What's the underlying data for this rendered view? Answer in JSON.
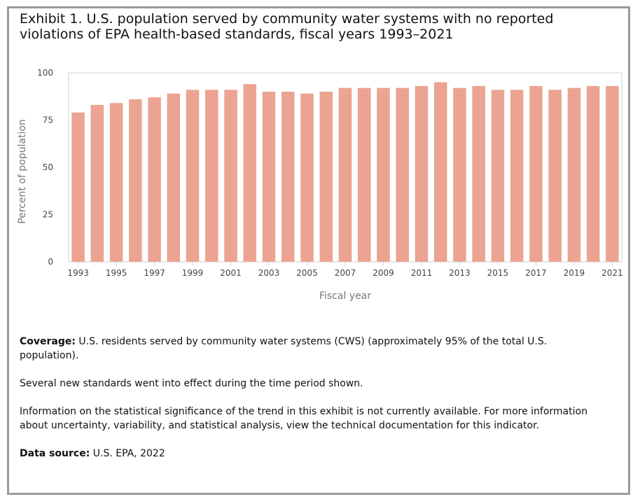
{
  "title": "Exhibit 1. U.S. population served by community water systems with no reported violations of EPA health-based standards, fiscal years 1993–2021",
  "chart_data": {
    "type": "bar",
    "xlabel": "Fiscal year",
    "ylabel": "Percent of population",
    "ylim": [
      0,
      100
    ],
    "yticks": [
      0,
      25,
      50,
      75,
      100
    ],
    "grid": false,
    "bar_color": "#eca392",
    "categories": [
      "1993",
      "1994",
      "1995",
      "1996",
      "1997",
      "1998",
      "1999",
      "2000",
      "2001",
      "2002",
      "2003",
      "2004",
      "2005",
      "2006",
      "2007",
      "2008",
      "2009",
      "2010",
      "2011",
      "2012",
      "2013",
      "2014",
      "2015",
      "2016",
      "2017",
      "2018",
      "2019",
      "2020",
      "2021"
    ],
    "tick_labels": [
      "1993",
      "1995",
      "1997",
      "1999",
      "2001",
      "2003",
      "2005",
      "2007",
      "2009",
      "2011",
      "2013",
      "2015",
      "2017",
      "2019",
      "2021"
    ],
    "values": [
      79,
      83,
      84,
      86,
      87,
      89,
      91,
      91,
      91,
      94,
      90,
      90,
      89,
      90,
      92,
      92,
      92,
      92,
      93,
      95,
      92,
      93,
      91,
      91,
      93,
      91,
      92,
      93,
      93
    ]
  },
  "notes": {
    "coverage_label": "Coverage:",
    "coverage_text": " U.S. residents served by community water systems (CWS) (approximately 95% of the total U.S. population).",
    "standards_text": "Several new standards went into effect during the time period shown.",
    "significance_text": "Information on the statistical significance of the trend in this exhibit is not currently available. For more information about uncertainty, variability, and statistical analysis, view the technical documentation for this indicator.",
    "source_label": "Data source:",
    "source_text": " U.S. EPA, 2022"
  }
}
